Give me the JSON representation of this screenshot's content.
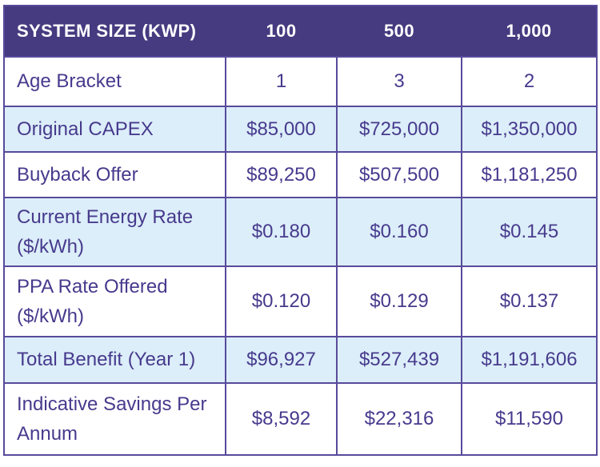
{
  "chart_data": {
    "type": "table",
    "header": {
      "label": "SYSTEM SIZE (KWP)",
      "columns": [
        "100",
        "500",
        "1,000"
      ]
    },
    "rows": [
      {
        "label": "Age Bracket",
        "values": [
          "1",
          "3",
          "2"
        ]
      },
      {
        "label": "Original CAPEX",
        "values": [
          "$85,000",
          "$725,000",
          "$1,350,000"
        ]
      },
      {
        "label": "Buyback Offer",
        "values": [
          "$89,250",
          "$507,500",
          "$1,181,250"
        ]
      },
      {
        "label": "Current Energy Rate ($/kWh)",
        "values": [
          "$0.180",
          "$0.160",
          "$0.145"
        ]
      },
      {
        "label": "PPA Rate Offered ($/kWh)",
        "values": [
          "$0.120",
          "$0.129",
          "$0.137"
        ]
      },
      {
        "label": "Total Benefit (Year 1)",
        "values": [
          "$96,927",
          "$527,439",
          "$1,191,606"
        ]
      },
      {
        "label": "Indicative Savings Per Annum",
        "values": [
          "$8,592",
          "$22,316",
          "$11,590"
        ]
      }
    ]
  },
  "colors": {
    "header_bg": "#463A80",
    "header_text": "#FFFFFF",
    "row_bg": "#FFFFFF",
    "row_alt_bg": "#DCEEF9",
    "text": "#473A8D",
    "border": "#584A9B"
  }
}
